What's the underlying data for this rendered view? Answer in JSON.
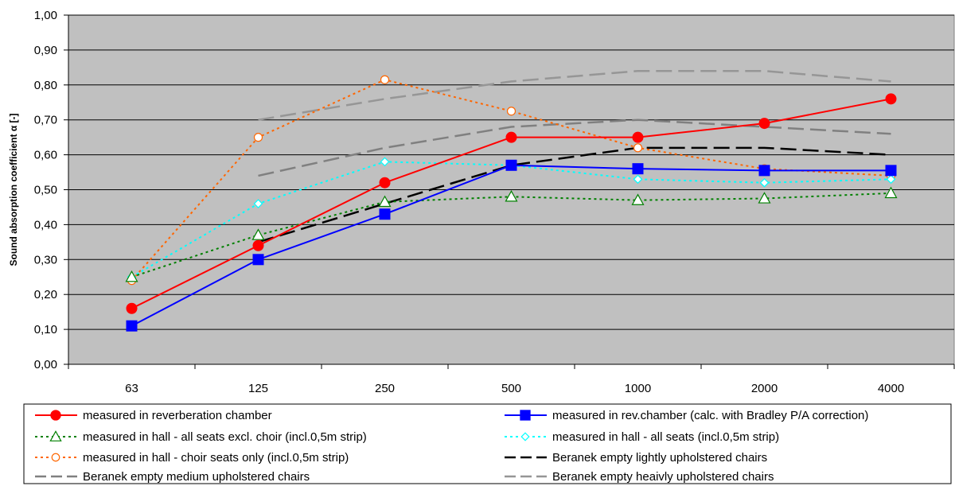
{
  "chart_data": {
    "type": "line",
    "title": "",
    "xlabel": "",
    "ylabel": "Sound absorption coefficient α [-]",
    "categories": [
      "63",
      "125",
      "250",
      "500",
      "1000",
      "2000",
      "4000"
    ],
    "yticks": [
      "0,00",
      "0,10",
      "0,20",
      "0,30",
      "0,40",
      "0,50",
      "0,60",
      "0,70",
      "0,80",
      "0,90",
      "1,00"
    ],
    "ylim": [
      0,
      1
    ],
    "grid": true,
    "plot_background": "#c0c0c0",
    "legend_position": "bottom",
    "series": [
      {
        "name": "measured in reverberation chamber",
        "values": [
          0.16,
          0.34,
          0.52,
          0.65,
          0.65,
          0.69,
          0.76
        ],
        "color": "#ff0000",
        "style": "solid",
        "marker": "circle-filled"
      },
      {
        "name": "measured in rev.chamber (calc. with Bradley P/A correction)",
        "values": [
          0.11,
          0.3,
          0.43,
          0.57,
          0.56,
          0.555,
          0.555
        ],
        "color": "#0000ff",
        "style": "solid",
        "marker": "square-filled"
      },
      {
        "name": "measured in hall - all seats excl. choir (incl.0,5m strip)",
        "values": [
          0.25,
          0.37,
          0.465,
          0.48,
          0.47,
          0.475,
          0.49
        ],
        "color": "#008000",
        "style": "dotted",
        "marker": "triangle-open"
      },
      {
        "name": "measured in hall - all seats (incl.0,5m strip)",
        "values": [
          0.25,
          0.46,
          0.58,
          0.57,
          0.53,
          0.52,
          0.53
        ],
        "color": "#00ffff",
        "style": "dotted",
        "marker": "diamond-open"
      },
      {
        "name": "measured in hall - choir seats only (incl.0,5m strip)",
        "values": [
          0.24,
          0.65,
          0.815,
          0.725,
          0.62,
          0.56,
          0.54
        ],
        "color": "#ff6600",
        "style": "dotted",
        "marker": "circle-open"
      },
      {
        "name": "Beranek empty lightly upholstered chairs",
        "values": [
          null,
          0.35,
          0.46,
          0.57,
          0.62,
          0.62,
          0.6
        ],
        "color": "#000000",
        "style": "dashed",
        "marker": "none"
      },
      {
        "name": "Beranek empty medium upholstered chairs",
        "values": [
          null,
          0.54,
          0.62,
          0.68,
          0.7,
          0.68,
          0.66
        ],
        "color": "#808080",
        "style": "dashed",
        "marker": "none"
      },
      {
        "name": "Beranek empty heaivly upholstered chairs",
        "values": [
          null,
          0.7,
          0.76,
          0.81,
          0.84,
          0.84,
          0.81
        ],
        "color": "#969696",
        "style": "dashed",
        "marker": "none"
      }
    ]
  }
}
